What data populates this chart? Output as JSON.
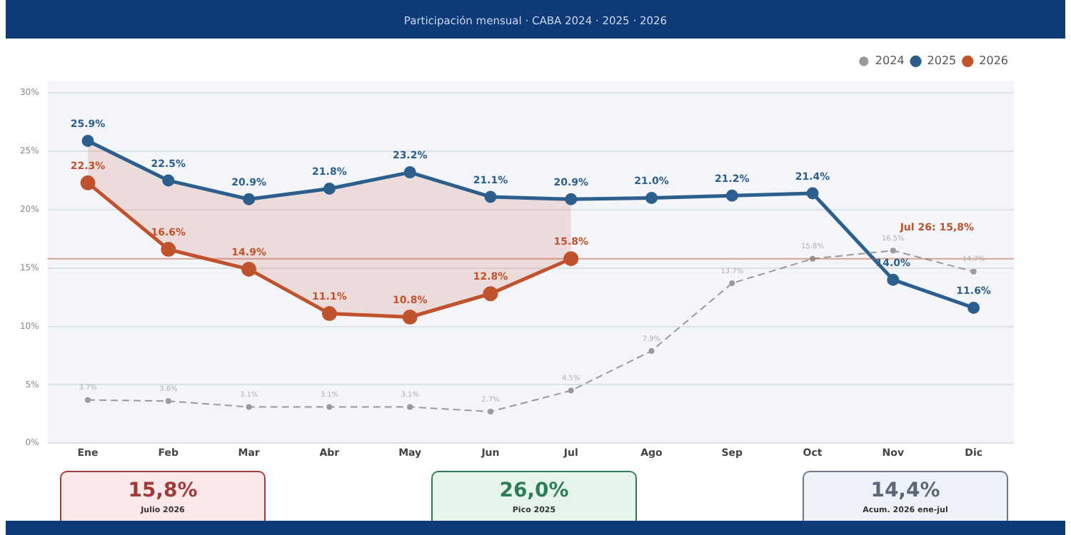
{
  "chart_data": {
    "type": "line",
    "subtitle": "Participación mensual · CABA 2024 · 2025 · 2026",
    "categories": [
      "Ene",
      "Feb",
      "Mar",
      "Abr",
      "May",
      "Jun",
      "Jul",
      "Ago",
      "Sep",
      "Oct",
      "Nov",
      "Dic"
    ],
    "series": [
      {
        "name": "2024",
        "color": "#9a9a9a",
        "line_style": "dashed",
        "values": [
          3.7,
          3.6,
          3.1,
          3.1,
          3.1,
          2.7,
          4.5,
          7.9,
          13.7,
          15.8,
          16.5,
          14.7
        ],
        "value_labels": [
          "3.7%",
          "3.6%",
          "3.1%",
          "3.1%",
          "3.1%",
          "2.7%",
          "4.5%",
          "7.9%",
          "13.7%",
          "15.8%",
          "16.5%",
          "14.7%"
        ]
      },
      {
        "name": "2025",
        "color": "#2c5f8e",
        "values": [
          25.9,
          22.5,
          20.9,
          21.8,
          23.2,
          21.1,
          20.9,
          21.0,
          21.2,
          21.4,
          14.0,
          11.6
        ],
        "value_labels": [
          "25.9%",
          "22.5%",
          "20.9%",
          "21.8%",
          "23.2%",
          "21.1%",
          "20.9%",
          "21.0%",
          "21.2%",
          "21.4%",
          "14.0%",
          "11.6%"
        ]
      },
      {
        "name": "2026",
        "color": "#c0522d",
        "values": [
          22.3,
          16.6,
          14.9,
          11.1,
          10.8,
          12.8,
          15.8,
          null,
          null,
          null,
          null,
          null
        ],
        "value_labels": [
          "22.3%",
          "16.6%",
          "14.9%",
          "11.1%",
          "10.8%",
          "12.8%",
          "15.8%",
          null,
          null,
          null,
          null,
          null
        ]
      }
    ],
    "ylim": [
      0,
      31
    ],
    "yticks": [
      {
        "value": 0,
        "label": "0%"
      },
      {
        "value": 5,
        "label": "5%"
      },
      {
        "value": 10,
        "label": "10%"
      },
      {
        "value": 15,
        "label": "15%"
      },
      {
        "value": 20,
        "label": "20%"
      },
      {
        "value": 25,
        "label": "25%"
      },
      {
        "value": 30,
        "label": "30%"
      }
    ],
    "ref_lines": [
      {
        "axis": "y",
        "value": 15.8,
        "label": "Jul 26: 15,8%",
        "color": "#c0522d"
      }
    ],
    "grid": "y",
    "legend": "top right",
    "marker": "circle",
    "annotations": [
      "15,8%",
      "Julio 2026",
      "26,0%",
      "Pico 2025",
      "14,4%",
      "Acum. 2026 ene-jul"
    ]
  }
}
